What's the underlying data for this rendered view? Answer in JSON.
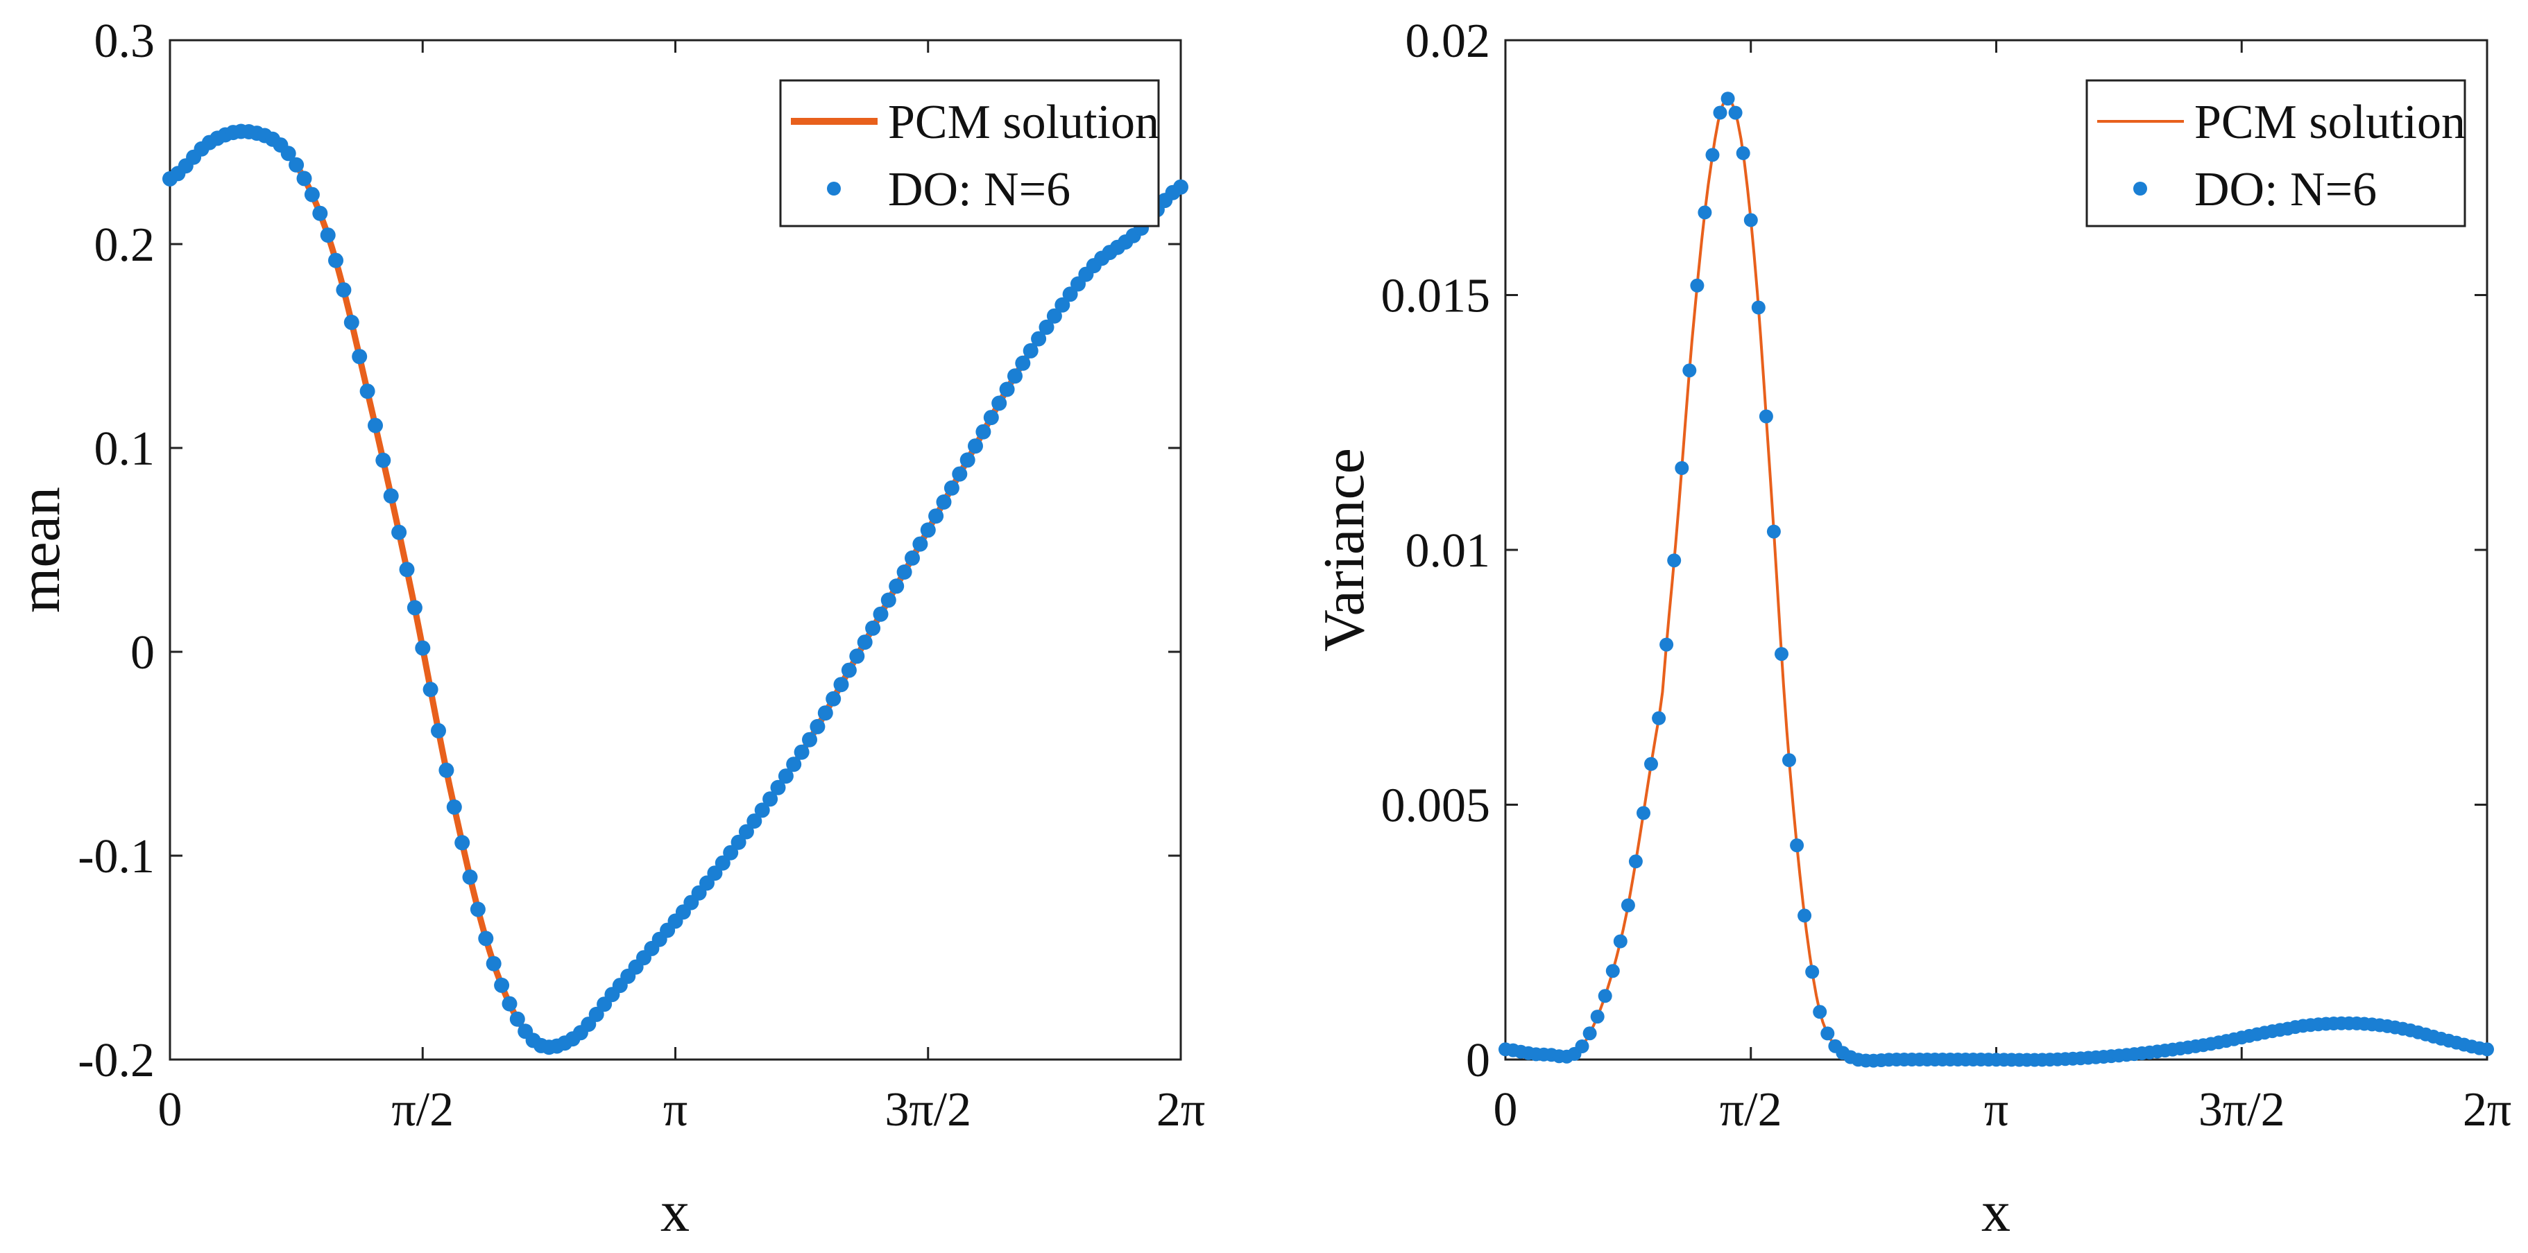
{
  "colors": {
    "line": "#e8601c",
    "dots": "#1a7fd4",
    "axis": "#222222"
  },
  "chart_data": [
    {
      "type": "line",
      "title": "",
      "xlabel": "x",
      "ylabel": "mean",
      "xlim": [
        0,
        6.283
      ],
      "ylim": [
        -0.2,
        0.3
      ],
      "xtick_labels": [
        "0",
        "π/2",
        "π",
        "3π/2",
        "2π"
      ],
      "ytick_labels": [
        "-0.2",
        "-0.1",
        "0",
        "0.1",
        "0.2",
        "0.3"
      ],
      "legend": [
        "PCM solution",
        "DO: N=6"
      ],
      "legend_position": "top-right",
      "series": [
        {
          "name": "PCM solution",
          "x": [
            0,
            0.25,
            0.5,
            0.75,
            1.0,
            1.25,
            1.5,
            1.75,
            2.0,
            2.25,
            2.5,
            2.75,
            3.0,
            3.25,
            3.5,
            3.75,
            4.0,
            4.25,
            4.5,
            4.75,
            5.0,
            5.25,
            5.5,
            5.75,
            6.0,
            6.283
          ],
          "y": [
            0.232,
            0.25,
            0.255,
            0.243,
            0.2,
            0.12,
            0.03,
            -0.07,
            -0.15,
            -0.19,
            -0.19,
            -0.168,
            -0.145,
            -0.122,
            -0.097,
            -0.07,
            -0.04,
            -0.005,
            0.03,
            0.065,
            0.1,
            0.135,
            0.165,
            0.19,
            0.205,
            0.228
          ]
        },
        {
          "name": "DO: N=6",
          "x": [
            0,
            0.25,
            0.5,
            0.75,
            1.0,
            1.25,
            1.5,
            1.75,
            2.0,
            2.25,
            2.5,
            2.75,
            3.0,
            3.25,
            3.5,
            3.75,
            4.0,
            4.25,
            4.5,
            4.75,
            5.0,
            5.25,
            5.5,
            5.75,
            6.0,
            6.283
          ],
          "y": [
            0.232,
            0.25,
            0.255,
            0.243,
            0.2,
            0.12,
            0.03,
            -0.07,
            -0.15,
            -0.19,
            -0.19,
            -0.168,
            -0.145,
            -0.122,
            -0.097,
            -0.07,
            -0.04,
            -0.005,
            0.03,
            0.065,
            0.1,
            0.135,
            0.165,
            0.19,
            0.205,
            0.228
          ]
        }
      ]
    },
    {
      "type": "line",
      "title": "",
      "xlabel": "x",
      "ylabel": "Variance",
      "xlim": [
        0,
        6.283
      ],
      "ylim": [
        0,
        0.02
      ],
      "xtick_labels": [
        "0",
        "π/2",
        "π",
        "3π/2",
        "2π"
      ],
      "ytick_labels": [
        "0",
        "0.005",
        "0.01",
        "0.015",
        "0.02"
      ],
      "legend": [
        "PCM solution",
        "DO: N=6"
      ],
      "legend_position": "top-right",
      "series": [
        {
          "name": "PCM solution",
          "x": [
            0,
            0.25,
            0.5,
            0.75,
            1.0,
            1.1,
            1.2,
            1.3,
            1.4,
            1.5,
            1.6,
            1.7,
            1.8,
            1.9,
            2.0,
            2.1,
            2.25,
            2.5,
            3.0,
            3.5,
            4.0,
            4.5,
            5.0,
            5.25,
            5.5,
            5.75,
            6.0,
            6.283
          ],
          "y": [
            0.0002,
            0.0001,
            0.0003,
            0.0025,
            0.007,
            0.0105,
            0.0143,
            0.0172,
            0.0188,
            0.0182,
            0.0155,
            0.0112,
            0.0065,
            0.0032,
            0.0011,
            0.0003,
            0.0,
            0.0,
            0.0,
            0.0,
            0.0001,
            0.0003,
            0.0006,
            0.0007,
            0.0007,
            0.0006,
            0.0004,
            0.0002
          ]
        },
        {
          "name": "DO: N=6",
          "x": [
            0,
            0.25,
            0.5,
            0.75,
            1.0,
            1.1,
            1.2,
            1.3,
            1.4,
            1.5,
            1.6,
            1.7,
            1.8,
            1.9,
            2.0,
            2.1,
            2.25,
            2.5,
            3.0,
            3.5,
            4.0,
            4.5,
            5.0,
            5.25,
            5.5,
            5.75,
            6.0,
            6.283
          ],
          "y": [
            0.0002,
            0.0001,
            0.0003,
            0.0025,
            0.007,
            0.0105,
            0.0143,
            0.0172,
            0.0188,
            0.0182,
            0.0155,
            0.0112,
            0.0065,
            0.0032,
            0.0011,
            0.0003,
            0.0,
            0.0,
            0.0,
            0.0,
            0.0001,
            0.0003,
            0.0006,
            0.0007,
            0.0007,
            0.0006,
            0.0004,
            0.0002
          ]
        }
      ]
    }
  ]
}
